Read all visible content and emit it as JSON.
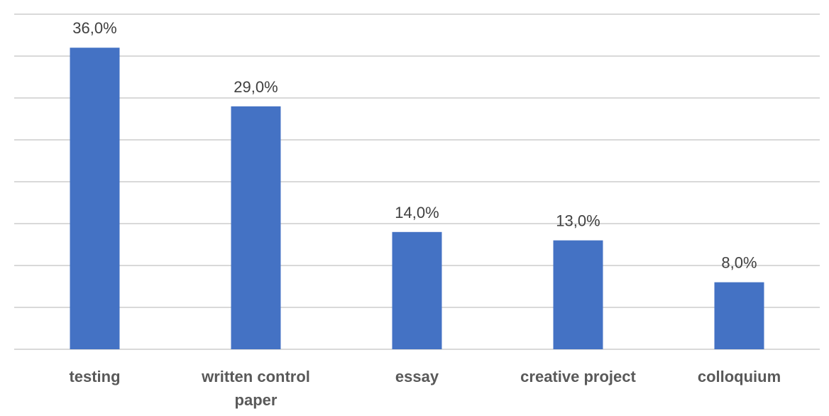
{
  "chart_data": {
    "type": "bar",
    "categories": [
      "testing",
      "written control paper",
      "essay",
      "creative project",
      "colloquium"
    ],
    "values": [
      36,
      29,
      14,
      13,
      8
    ],
    "value_labels": [
      "36,0%",
      "29,0%",
      "14,0%",
      "13,0%",
      "8,0%"
    ],
    "color": "#4472c4",
    "ylim": [
      0,
      40
    ],
    "yticks": [
      0,
      5,
      10,
      15,
      20,
      25,
      30,
      35,
      40
    ],
    "grid": true
  }
}
